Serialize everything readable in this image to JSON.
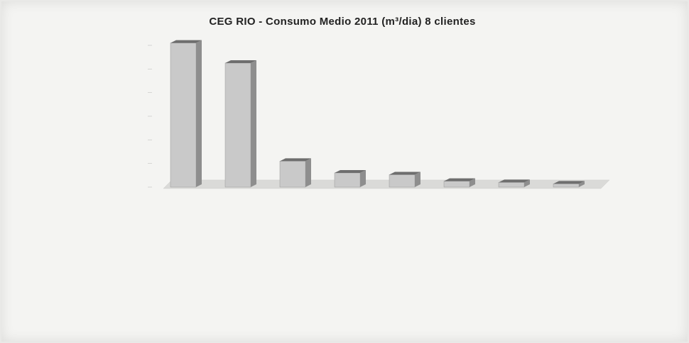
{
  "chart_data": {
    "type": "bar",
    "title": "CEG RIO  - Consumo Medio 2011 (m³/dia) 8 clientes",
    "categories": [
      "",
      "",
      "",
      "",
      "",
      "",
      "",
      ""
    ],
    "values": [
      1220000,
      1050000,
      220000,
      120000,
      105000,
      50000,
      40000,
      28000
    ],
    "ylim": [
      0,
      1200000
    ],
    "yticks": [
      0,
      200000,
      400000,
      600000,
      800000,
      1000000,
      1200000
    ],
    "ytick_labels": [
      "",
      "",
      "",
      "",
      "",
      "",
      ""
    ],
    "xlabel": "",
    "ylabel": "",
    "grid": false,
    "colors": {
      "bar_front": "#c9c9c9",
      "bar_side": "#8e8e8e",
      "bar_top": "#6e6e6e",
      "floor": "#dadad8"
    }
  }
}
